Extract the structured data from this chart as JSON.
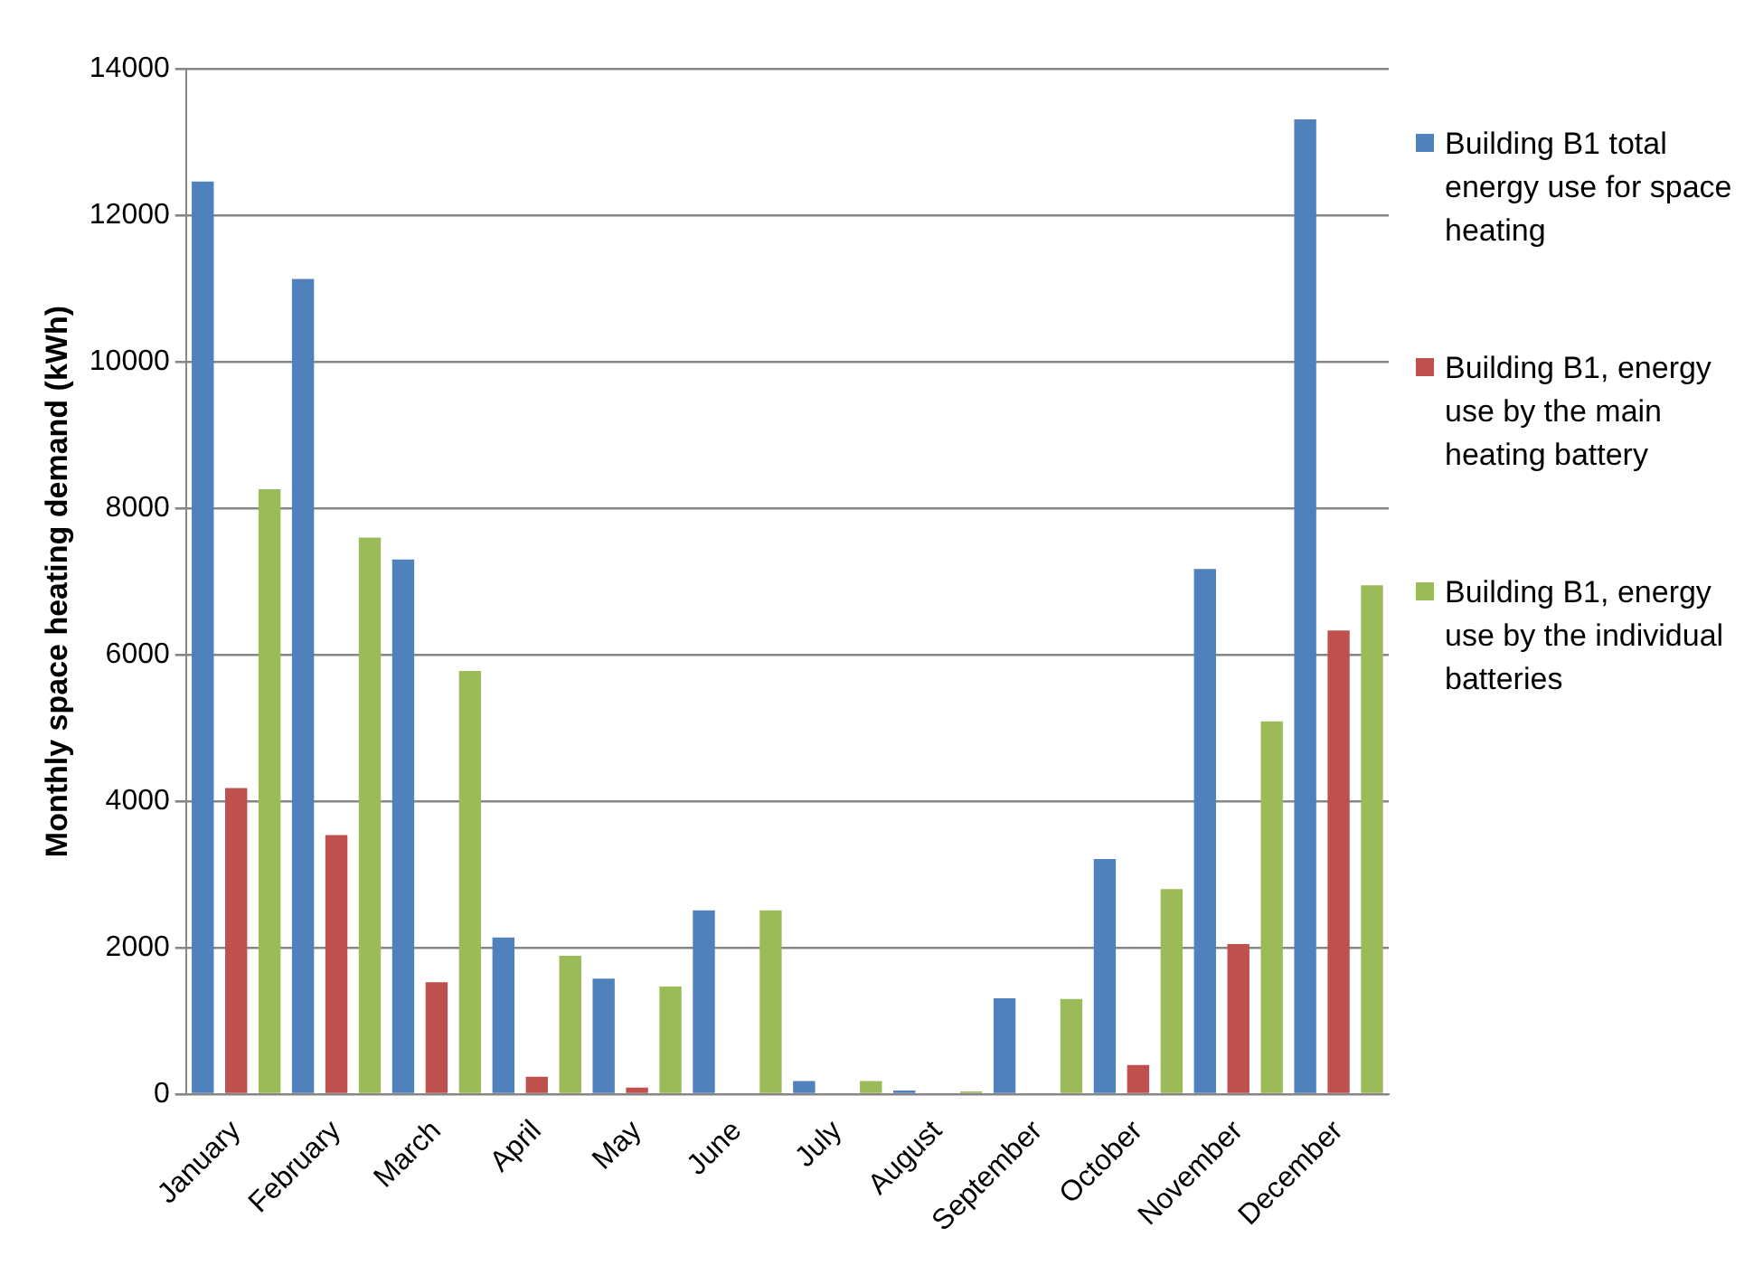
{
  "chart_data": {
    "type": "bar",
    "ylabel": "Monthly space heating demand (kWh)",
    "categories": [
      "January",
      "February",
      "March",
      "April",
      "May",
      "June",
      "July",
      "August",
      "September",
      "October",
      "November",
      "December"
    ],
    "series": [
      {
        "name": "Building B1 total energy use for space heating",
        "color": "#4f81bd",
        "values": [
          12460,
          11130,
          7300,
          2140,
          1580,
          2510,
          180,
          50,
          1310,
          3210,
          7170,
          13310
        ]
      },
      {
        "name": "Building B1, energy use by the main heating battery",
        "color": "#c0504d",
        "values": [
          4180,
          3540,
          1530,
          240,
          90,
          0,
          0,
          0,
          0,
          400,
          2050,
          6330
        ]
      },
      {
        "name": "Building B1, energy use by the individual batteries",
        "color": "#9bbb59",
        "values": [
          8260,
          7600,
          5780,
          1890,
          1470,
          2510,
          180,
          40,
          1300,
          2800,
          5090,
          6950
        ]
      }
    ],
    "ylim": [
      0,
      14000
    ],
    "yticks": [
      0,
      2000,
      4000,
      6000,
      8000,
      10000,
      12000,
      14000
    ],
    "grid": "y",
    "legend": "right"
  }
}
